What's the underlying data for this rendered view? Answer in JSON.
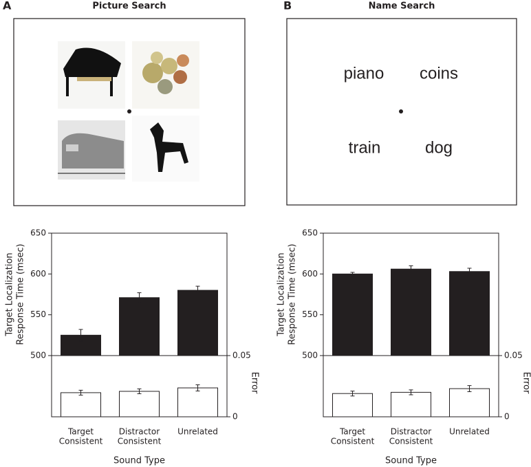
{
  "panels": [
    {
      "label": "A",
      "title": "Picture Search"
    },
    {
      "label": "B",
      "title": "Name Search",
      "words": [
        "piano",
        "coins",
        "train",
        "dog"
      ]
    }
  ],
  "chart_data": [
    {
      "type": "bar",
      "ylabel": [
        "Target Localization",
        "Response Time (msec)"
      ],
      "xlabel": "Sound Type",
      "y2label": "Error",
      "categories": [
        [
          "Target",
          "Consistent"
        ],
        [
          "Distractor",
          "Consistent"
        ],
        [
          "Unrelated"
        ]
      ],
      "ylim": [
        500,
        650
      ],
      "yticks": [
        500,
        550,
        600,
        650
      ],
      "y2lim": [
        0,
        0.05
      ],
      "y2ticks": [
        0,
        0.05
      ],
      "series": [
        {
          "color": "#231f20",
          "values": [
            525,
            571,
            580
          ],
          "errors": [
            7,
            6,
            5
          ]
        },
        {
          "color": "#ffffff",
          "axis": "y2",
          "values": [
            0.0197,
            0.0208,
            0.0236
          ],
          "errors": [
            0.002,
            0.002,
            0.0025
          ]
        }
      ]
    },
    {
      "type": "bar",
      "ylabel": [
        "Target Localization",
        "Response Time (msec)"
      ],
      "xlabel": "Sound Type",
      "y2label": "Error",
      "categories": [
        [
          "Target",
          "Consistent"
        ],
        [
          "Distractor",
          "Consistent"
        ],
        [
          "Unrelated"
        ]
      ],
      "ylim": [
        500,
        650
      ],
      "yticks": [
        500,
        550,
        600,
        650
      ],
      "y2lim": [
        0,
        0.05
      ],
      "y2ticks": [
        0,
        0.05
      ],
      "series": [
        {
          "color": "#231f20",
          "values": [
            600,
            606,
            603
          ],
          "errors": [
            2,
            4,
            4
          ]
        },
        {
          "color": "#ffffff",
          "axis": "y2",
          "values": [
            0.019,
            0.02,
            0.023
          ],
          "errors": [
            0.002,
            0.002,
            0.0025
          ]
        }
      ]
    }
  ]
}
